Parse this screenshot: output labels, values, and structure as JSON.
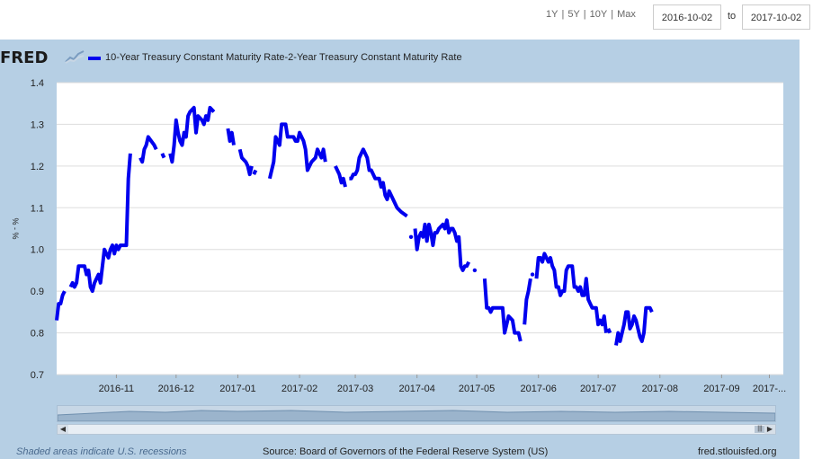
{
  "range_buttons": [
    "1Y",
    "5Y",
    "10Y",
    "Max"
  ],
  "date_range": {
    "start": "2016-10-02",
    "to_label": "to",
    "end": "2017-10-02"
  },
  "logo_text": "FRED",
  "footer": {
    "recession_note": "Shaded areas indicate U.S. recessions",
    "source": "Source: Board of Governors of the Federal Reserve System (US)",
    "site": "fred.stlouisfed.org"
  },
  "colors": {
    "series": "#0000ee",
    "panel": "#b6cfe4",
    "plot_bg": "#ffffff",
    "grid": "#dddddd"
  },
  "chart_data": {
    "type": "line",
    "title": "10-Year Treasury Constant Maturity Rate-2-Year Treasury Constant Maturity Rate",
    "xlabel": "",
    "ylabel": "% - %",
    "ylim": [
      0.7,
      1.4
    ],
    "yticks": [
      "0.7",
      "0.8",
      "0.9",
      "1.0",
      "1.1",
      "1.2",
      "1.3",
      "1.4"
    ],
    "xlim": [
      0,
      365
    ],
    "xticks": [
      {
        "label": "2016-11",
        "day": 30
      },
      {
        "label": "2016-12",
        "day": 60
      },
      {
        "label": "2017-01",
        "day": 91
      },
      {
        "label": "2017-02",
        "day": 122
      },
      {
        "label": "2017-03",
        "day": 150
      },
      {
        "label": "2017-04",
        "day": 181
      },
      {
        "label": "2017-05",
        "day": 211
      },
      {
        "label": "2017-06",
        "day": 242
      },
      {
        "label": "2017-07",
        "day": 272
      },
      {
        "label": "2017-08",
        "day": 303
      },
      {
        "label": "2017-09",
        "day": 334
      },
      {
        "label": "2017-...",
        "day": 358
      }
    ],
    "series": [
      {
        "name": "10-Year Treasury Constant Maturity Rate-2-Year Treasury Constant Maturity Rate",
        "segments": [
          [
            [
              0,
              0.83
            ],
            [
              1,
              0.87
            ],
            [
              2,
              0.87
            ],
            [
              3,
              0.89
            ],
            [
              4,
              0.9
            ]
          ],
          [
            [
              7,
              0.91
            ],
            [
              8,
              0.92
            ],
            [
              9,
              0.91
            ],
            [
              10,
              0.92
            ],
            [
              11,
              0.96
            ],
            [
              13,
              0.96
            ],
            [
              14,
              0.96
            ],
            [
              15,
              0.94
            ],
            [
              16,
              0.95
            ],
            [
              17,
              0.91
            ],
            [
              18,
              0.9
            ],
            [
              19,
              0.92
            ],
            [
              20,
              0.93
            ],
            [
              21,
              0.94
            ],
            [
              22,
              0.92
            ],
            [
              23,
              0.96
            ],
            [
              24,
              1.0
            ],
            [
              25,
              0.99
            ],
            [
              26,
              0.98
            ],
            [
              27,
              1.0
            ],
            [
              28,
              1.01
            ],
            [
              29,
              0.99
            ],
            [
              30,
              1.01
            ],
            [
              31,
              1.0
            ],
            [
              32,
              1.01
            ],
            [
              35,
              1.01
            ],
            [
              36,
              1.17
            ],
            [
              37,
              1.23
            ]
          ],
          [
            [
              42,
              1.22
            ],
            [
              43,
              1.21
            ],
            [
              44,
              1.24
            ],
            [
              45,
              1.25
            ],
            [
              46,
              1.27
            ],
            [
              49,
              1.25
            ],
            [
              50,
              1.24
            ]
          ],
          [
            [
              53,
              1.23
            ],
            [
              54,
              1.22
            ]
          ],
          [
            [
              57,
              1.23
            ],
            [
              58,
              1.21
            ],
            [
              59,
              1.25
            ],
            [
              60,
              1.31
            ],
            [
              61,
              1.28
            ],
            [
              62,
              1.26
            ],
            [
              63,
              1.25
            ],
            [
              64,
              1.28
            ],
            [
              65,
              1.27
            ],
            [
              66,
              1.32
            ],
            [
              67,
              1.33
            ],
            [
              69,
              1.34
            ],
            [
              70,
              1.28
            ],
            [
              71,
              1.32
            ],
            [
              73,
              1.31
            ],
            [
              74,
              1.3
            ],
            [
              75,
              1.32
            ],
            [
              76,
              1.31
            ],
            [
              77,
              1.34
            ],
            [
              79,
              1.33
            ]
          ],
          [
            [
              86,
              1.29
            ],
            [
              87,
              1.26
            ],
            [
              88,
              1.28
            ],
            [
              89,
              1.25
            ]
          ],
          [
            [
              92,
              1.24
            ],
            [
              93,
              1.22
            ],
            [
              95,
              1.21
            ],
            [
              96,
              1.2
            ],
            [
              97,
              1.18
            ],
            [
              98,
              1.2
            ]
          ],
          [
            [
              99,
              1.18
            ],
            [
              100,
              1.19
            ]
          ],
          [
            [
              107,
              1.17
            ],
            [
              109,
              1.21
            ],
            [
              110,
              1.27
            ],
            [
              111,
              1.26
            ],
            [
              112,
              1.25
            ],
            [
              113,
              1.3
            ],
            [
              115,
              1.3
            ],
            [
              116,
              1.27
            ],
            [
              118,
              1.27
            ],
            [
              119,
              1.27
            ],
            [
              120,
              1.26
            ],
            [
              121,
              1.26
            ],
            [
              122,
              1.28
            ],
            [
              124,
              1.26
            ],
            [
              125,
              1.24
            ],
            [
              126,
              1.19
            ],
            [
              128,
              1.21
            ],
            [
              130,
              1.22
            ],
            [
              131,
              1.24
            ],
            [
              133,
              1.22
            ],
            [
              134,
              1.24
            ],
            [
              135,
              1.21
            ]
          ],
          [
            [
              140,
              1.2
            ],
            [
              141,
              1.19
            ],
            [
              142,
              1.18
            ],
            [
              143,
              1.16
            ],
            [
              144,
              1.17
            ],
            [
              145,
              1.15
            ]
          ],
          [
            [
              147,
              1.17
            ],
            [
              148,
              1.17
            ],
            [
              149,
              1.18
            ],
            [
              150,
              1.18
            ],
            [
              151,
              1.19
            ],
            [
              152,
              1.22
            ],
            [
              153,
              1.23
            ],
            [
              154,
              1.24
            ],
            [
              155,
              1.23
            ],
            [
              156,
              1.22
            ],
            [
              157,
              1.19
            ],
            [
              158,
              1.19
            ],
            [
              159,
              1.18
            ],
            [
              160,
              1.17
            ],
            [
              162,
              1.17
            ],
            [
              163,
              1.15
            ],
            [
              164,
              1.16
            ],
            [
              165,
              1.13
            ],
            [
              166,
              1.12
            ],
            [
              167,
              1.14
            ],
            [
              169,
              1.12
            ],
            [
              170,
              1.11
            ],
            [
              171,
              1.1
            ],
            [
              173,
              1.09
            ],
            [
              176,
              1.08
            ]
          ],
          [
            [
              178,
              1.03
            ]
          ],
          [
            [
              180,
              1.05
            ],
            [
              181,
              1.0
            ],
            [
              182,
              1.03
            ],
            [
              183,
              1.04
            ],
            [
              184,
              1.03
            ],
            [
              185,
              1.06
            ],
            [
              186,
              1.02
            ],
            [
              187,
              1.06
            ],
            [
              188,
              1.04
            ],
            [
              189,
              1.01
            ],
            [
              190,
              1.04
            ],
            [
              191,
              1.04
            ],
            [
              192,
              1.05
            ],
            [
              194,
              1.06
            ],
            [
              195,
              1.05
            ],
            [
              196,
              1.07
            ],
            [
              197,
              1.04
            ],
            [
              198,
              1.05
            ],
            [
              199,
              1.05
            ],
            [
              200,
              1.04
            ],
            [
              201,
              1.02
            ],
            [
              202,
              1.03
            ],
            [
              203,
              0.96
            ],
            [
              204,
              0.95
            ],
            [
              205,
              0.96
            ],
            [
              206,
              0.96
            ],
            [
              207,
              0.97
            ]
          ],
          [
            [
              210,
              0.95
            ]
          ],
          [
            [
              215,
              0.93
            ],
            [
              216,
              0.86
            ],
            [
              217,
              0.86
            ],
            [
              218,
              0.85
            ],
            [
              219,
              0.86
            ],
            [
              222,
              0.86
            ],
            [
              224,
              0.86
            ],
            [
              225,
              0.8
            ],
            [
              226,
              0.82
            ],
            [
              227,
              0.84
            ],
            [
              229,
              0.83
            ],
            [
              230,
              0.8
            ],
            [
              232,
              0.8
            ],
            [
              233,
              0.78
            ]
          ],
          [
            [
              235,
              0.82
            ],
            [
              236,
              0.88
            ],
            [
              237,
              0.9
            ],
            [
              238,
              0.93
            ]
          ],
          [
            [
              239,
              0.94
            ]
          ],
          [
            [
              241,
              0.93
            ],
            [
              242,
              0.98
            ],
            [
              243,
              0.98
            ],
            [
              244,
              0.97
            ],
            [
              245,
              0.99
            ],
            [
              246,
              0.98
            ],
            [
              247,
              0.97
            ],
            [
              248,
              0.98
            ],
            [
              249,
              0.96
            ],
            [
              250,
              0.95
            ],
            [
              251,
              0.91
            ],
            [
              252,
              0.91
            ],
            [
              253,
              0.89
            ],
            [
              254,
              0.9
            ],
            [
              255,
              0.9
            ],
            [
              256,
              0.95
            ],
            [
              257,
              0.96
            ],
            [
              259,
              0.96
            ],
            [
              260,
              0.91
            ],
            [
              261,
              0.91
            ],
            [
              262,
              0.9
            ],
            [
              263,
              0.91
            ],
            [
              264,
              0.89
            ],
            [
              265,
              0.89
            ],
            [
              266,
              0.93
            ],
            [
              267,
              0.88
            ],
            [
              268,
              0.87
            ],
            [
              269,
              0.86
            ],
            [
              271,
              0.86
            ],
            [
              272,
              0.82
            ],
            [
              273,
              0.83
            ],
            [
              274,
              0.82
            ],
            [
              275,
              0.84
            ],
            [
              276,
              0.8
            ]
          ],
          [
            [
              277,
              0.81
            ],
            [
              278,
              0.8
            ]
          ],
          [
            [
              281,
              0.77
            ],
            [
              282,
              0.8
            ],
            [
              283,
              0.78
            ],
            [
              284,
              0.8
            ],
            [
              285,
              0.82
            ],
            [
              286,
              0.85
            ],
            [
              287,
              0.85
            ],
            [
              288,
              0.81
            ],
            [
              289,
              0.82
            ],
            [
              290,
              0.84
            ],
            [
              291,
              0.83
            ],
            [
              292,
              0.81
            ],
            [
              293,
              0.79
            ],
            [
              294,
              0.78
            ],
            [
              295,
              0.8
            ],
            [
              296,
              0.86
            ],
            [
              298,
              0.86
            ],
            [
              299,
              0.85
            ]
          ]
        ]
      }
    ]
  }
}
